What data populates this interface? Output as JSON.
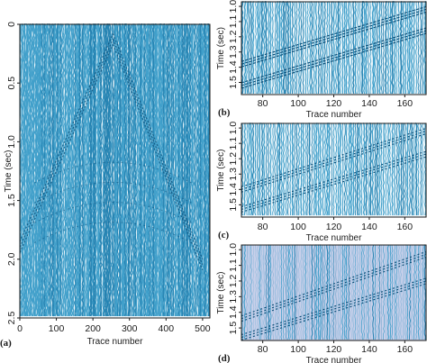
{
  "colors": {
    "trace": "#3a9cc8",
    "trace_dark": "#1f7fb0",
    "pick": "#0d4f78",
    "panel_bg_light": "#eef7fb",
    "panel_d_bg": "#c9d0ea",
    "axis": "#1a1a1a"
  },
  "chart_data": [
    {
      "panel": "(a)",
      "type": "seismic-section",
      "xlabel": "Trace number",
      "ylabel": "Time (sec)",
      "xlim": [
        0,
        520
      ],
      "ylim": [
        0,
        2.5
      ],
      "y_inverted": true,
      "x_ticks": [
        "0",
        "100",
        "200",
        "300",
        "400",
        "500"
      ],
      "y_ticks": [
        "0",
        "0.5",
        "1.0",
        "1.5",
        "2.0",
        "2.5"
      ],
      "apex": {
        "trace": 255,
        "time": 0.08
      },
      "reflection_left_end": {
        "trace": 0,
        "time": 1.85
      },
      "reflection_right_end": {
        "trace": 500,
        "time": 2.0
      }
    },
    {
      "panel": "(b)",
      "type": "seismic-section",
      "xlabel": "Trace number",
      "ylabel": "Time (sec)",
      "xlim": [
        68,
        172
      ],
      "ylim": [
        0.97,
        1.58
      ],
      "y_inverted": true,
      "x_ticks": [
        "80",
        "100",
        "120",
        "140",
        "160"
      ],
      "y_ticks": [
        "1.0",
        "1.1",
        "1.2",
        "1.3",
        "1.4",
        "1.5"
      ],
      "events": [
        {
          "x": [
            68,
            172
          ],
          "y": [
            1.38,
            1.02
          ]
        },
        {
          "x": [
            68,
            172
          ],
          "y": [
            1.52,
            1.16
          ]
        }
      ]
    },
    {
      "panel": "(c)",
      "type": "seismic-section",
      "xlabel": "Trace number",
      "ylabel": "Time (sec)",
      "xlim": [
        68,
        172
      ],
      "ylim": [
        0.97,
        1.58
      ],
      "y_inverted": true,
      "x_ticks": [
        "80",
        "100",
        "120",
        "140",
        "160"
      ],
      "y_ticks": [
        "1.0",
        "1.1",
        "1.2",
        "1.3",
        "1.4",
        "1.5"
      ],
      "events": [
        {
          "x": [
            68,
            172
          ],
          "y": [
            1.4,
            1.02
          ]
        },
        {
          "x": [
            68,
            172
          ],
          "y": [
            1.53,
            1.17
          ]
        }
      ]
    },
    {
      "panel": "(d)",
      "type": "seismic-section",
      "xlabel": "Trace number",
      "ylabel": "Time (sec)",
      "xlim": [
        68,
        172
      ],
      "ylim": [
        0.97,
        1.58
      ],
      "y_inverted": true,
      "x_ticks": [
        "80",
        "100",
        "120",
        "140",
        "160"
      ],
      "y_ticks": [
        "1.0",
        "1.1",
        "1.2",
        "1.3",
        "1.4",
        "1.5"
      ],
      "events": [
        {
          "x": [
            68,
            172
          ],
          "y": [
            1.44,
            1.03
          ]
        },
        {
          "x": [
            68,
            172
          ],
          "y": [
            1.56,
            1.2
          ]
        }
      ]
    }
  ]
}
